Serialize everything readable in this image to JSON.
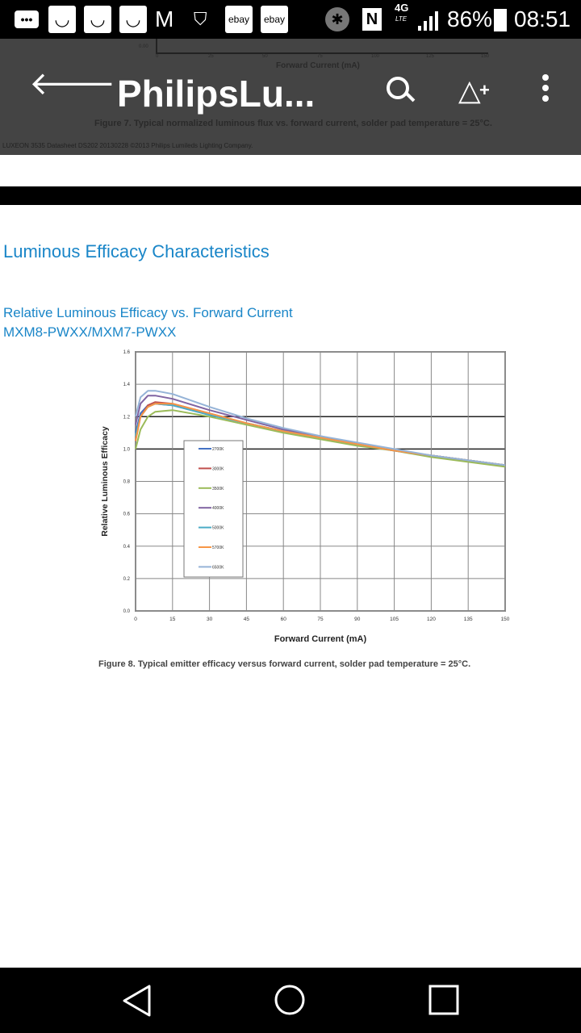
{
  "status_bar": {
    "battery": "86%",
    "time": "08:51",
    "network": "4G",
    "network_sub": "LTE",
    "notifications": [
      "more-icon",
      "bag-icon",
      "bag-icon",
      "bag-icon",
      "gmail-icon",
      "shield-wifi-icon",
      "ebay-icon",
      "ebay-icon"
    ],
    "ebay_label": "ebay"
  },
  "app_bar": {
    "title": "PhilipsLu...",
    "behind_axis_label": "Forward Current (mA)",
    "behind_caption": "Figure 7. Typical normalized luminous flux vs. forward current, solder pad temperature = 25°C.",
    "behind_footer": "LUXEON 3535 Datasheet DS202 20130228 ©2013 Philips Lumileds Lighting Company.",
    "behind_ticks": [
      "0.00",
      "0",
      "25",
      "50",
      "75",
      "100",
      "125",
      "150"
    ]
  },
  "document": {
    "section_title": "Luminous Efficacy Characteristics",
    "chart_title_1": "Relative Luminous Efficacy vs. Forward Current",
    "chart_title_2": "MXM8-PWXX/MXM7-PWXX",
    "caption": "Figure 8. Typical emitter efficacy versus forward current, solder pad temperature = 25°C."
  },
  "chart_data": {
    "type": "line",
    "title": "Relative Luminous Efficacy vs. Forward Current",
    "xlabel": "Forward Current (mA)",
    "ylabel": "Relative Luminous Efficacy",
    "xlim": [
      0,
      150
    ],
    "ylim": [
      0,
      1.6
    ],
    "xticks": [
      "0",
      "15",
      "30",
      "45",
      "60",
      "75",
      "90",
      "105",
      "120",
      "135",
      "150"
    ],
    "yticks": [
      "0.0",
      "0.2",
      "0.4",
      "0.6",
      "0.8",
      "1.0",
      "1.2",
      "1.4",
      "1.6"
    ],
    "grid": true,
    "legend_position": "center-left",
    "x": [
      0,
      2,
      5,
      8,
      15,
      30,
      45,
      60,
      75,
      90,
      105,
      120,
      135,
      150
    ],
    "series": [
      {
        "name": "2700K",
        "color": "#4472c4",
        "values": [
          1.1,
          1.22,
          1.27,
          1.28,
          1.27,
          1.21,
          1.16,
          1.11,
          1.07,
          1.03,
          0.99,
          0.96,
          0.93,
          0.9
        ]
      },
      {
        "name": "3000K",
        "color": "#c0504d",
        "values": [
          1.05,
          1.2,
          1.27,
          1.29,
          1.28,
          1.22,
          1.16,
          1.11,
          1.07,
          1.03,
          0.99,
          0.96,
          0.93,
          0.9
        ]
      },
      {
        "name": "3500K",
        "color": "#9bbb59",
        "values": [
          1.0,
          1.12,
          1.2,
          1.23,
          1.24,
          1.2,
          1.15,
          1.1,
          1.06,
          1.02,
          0.99,
          0.95,
          0.92,
          0.89
        ]
      },
      {
        "name": "4000K",
        "color": "#8064a2",
        "values": [
          1.15,
          1.28,
          1.33,
          1.33,
          1.31,
          1.24,
          1.18,
          1.12,
          1.08,
          1.03,
          0.99,
          0.96,
          0.93,
          0.9
        ]
      },
      {
        "name": "5000K",
        "color": "#4bacc6",
        "values": [
          1.08,
          1.2,
          1.26,
          1.28,
          1.27,
          1.21,
          1.16,
          1.11,
          1.07,
          1.03,
          0.99,
          0.96,
          0.93,
          0.9
        ]
      },
      {
        "name": "5700K",
        "color": "#f79646",
        "values": [
          1.05,
          1.2,
          1.26,
          1.28,
          1.28,
          1.22,
          1.16,
          1.11,
          1.07,
          1.03,
          0.99,
          0.96,
          0.93,
          0.9
        ]
      },
      {
        "name": "6500K",
        "color": "#95b3d7",
        "values": [
          1.2,
          1.32,
          1.36,
          1.36,
          1.34,
          1.26,
          1.19,
          1.13,
          1.08,
          1.04,
          1.0,
          0.96,
          0.93,
          0.9
        ]
      }
    ]
  }
}
